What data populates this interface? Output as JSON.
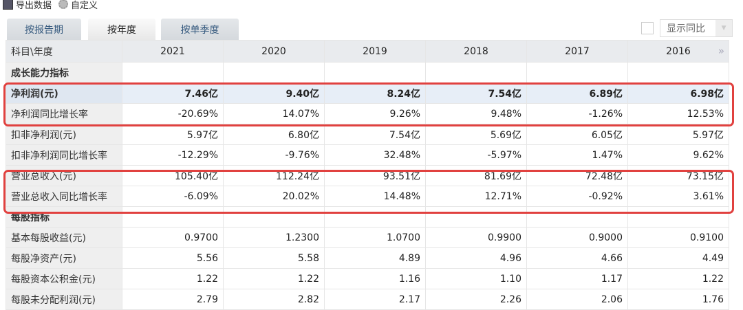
{
  "toolbar": {
    "export": "导出数据",
    "custom": "自定义"
  },
  "tabs": [
    "按报告期",
    "按年度",
    "按单季度"
  ],
  "active_tab": 1,
  "yoy": {
    "label": "显示同比",
    "checked": false
  },
  "table": {
    "corner": "科目\\年度",
    "years": [
      "2021",
      "2020",
      "2019",
      "2018",
      "2017",
      "2016"
    ],
    "rows": [
      {
        "label": "成长能力指标",
        "section": true,
        "values": [
          "",
          "",
          "",
          "",
          "",
          ""
        ]
      },
      {
        "label": "净利润(元)",
        "values": [
          "7.46亿",
          "9.40亿",
          "8.24亿",
          "7.54亿",
          "6.89亿",
          "6.98亿"
        ]
      },
      {
        "label": "净利润同比增长率",
        "values": [
          "-20.69%",
          "14.07%",
          "9.26%",
          "9.48%",
          "-1.26%",
          "12.53%"
        ]
      },
      {
        "label": "扣非净利润(元)",
        "values": [
          "5.97亿",
          "6.80亿",
          "7.54亿",
          "5.69亿",
          "6.05亿",
          "5.97亿"
        ]
      },
      {
        "label": "扣非净利润同比增长率",
        "values": [
          "-12.29%",
          "-9.76%",
          "32.48%",
          "-5.97%",
          "1.47%",
          "9.62%"
        ]
      },
      {
        "label": "营业总收入(元)",
        "values": [
          "105.40亿",
          "112.24亿",
          "93.51亿",
          "81.69亿",
          "72.48亿",
          "73.15亿"
        ]
      },
      {
        "label": "营业总收入同比增长率",
        "values": [
          "-6.09%",
          "20.02%",
          "14.48%",
          "12.71%",
          "-0.92%",
          "3.61%"
        ]
      },
      {
        "label": "每股指标",
        "section": true,
        "values": [
          "",
          "",
          "",
          "",
          "",
          ""
        ]
      },
      {
        "label": "基本每股收益(元)",
        "values": [
          "0.9700",
          "1.2300",
          "1.0700",
          "0.9900",
          "0.9000",
          "0.9100"
        ]
      },
      {
        "label": "每股净资产(元)",
        "values": [
          "5.56",
          "5.58",
          "4.89",
          "4.96",
          "4.66",
          "4.49"
        ]
      },
      {
        "label": "每股资本公积金(元)",
        "values": [
          "1.22",
          "1.22",
          "1.16",
          "1.10",
          "1.17",
          "1.22"
        ]
      },
      {
        "label": "每股未分配利润(元)",
        "values": [
          "2.79",
          "2.82",
          "2.17",
          "2.26",
          "2.06",
          "1.76"
        ]
      }
    ]
  },
  "colors": {
    "highlight_box": "#e1413f",
    "row_highlight": "#e7eef7"
  }
}
